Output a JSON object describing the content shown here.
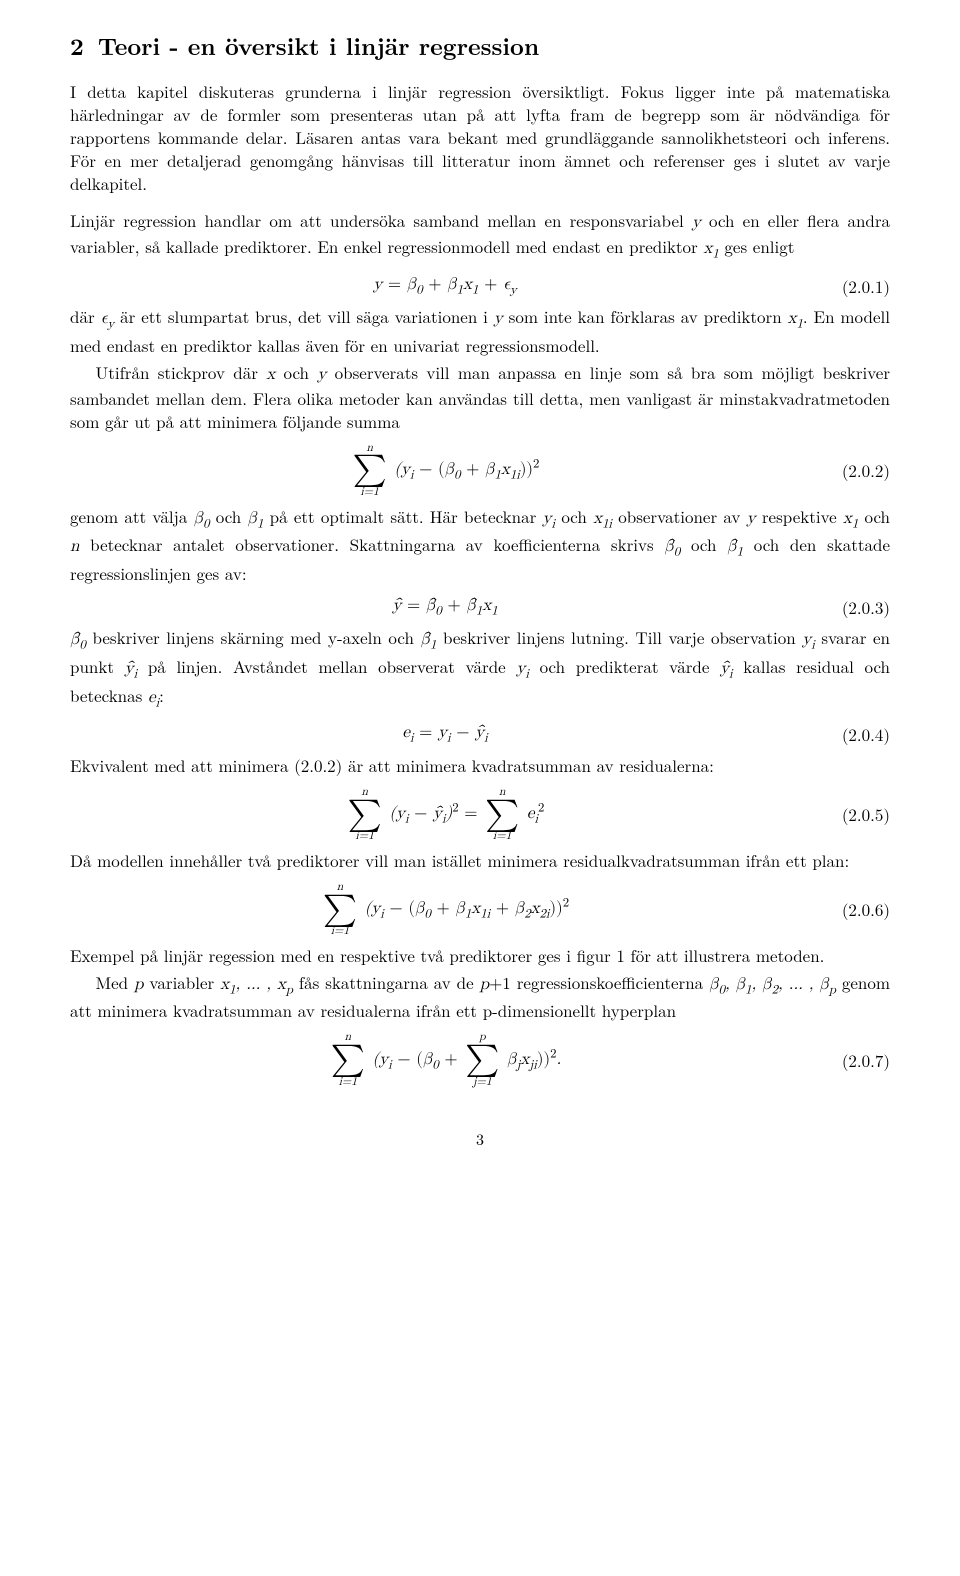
{
  "section": {
    "number": "2",
    "title": "Teori - en översikt i linjär regression"
  },
  "para1": "I detta kapitel diskuteras grunderna i linjär regression översiktligt. Fokus ligger inte på matematiska härledningar av de formler som presenteras utan på att lyfta fram de begrepp som är nödvändiga för rapportens kommande delar. Läsaren antas vara bekant med grundläggande sannolikhetsteori och inferens. För en mer detaljerad genomgång hänvisas till litteratur inom ämnet och referenser ges i slutet av varje delkapitel.",
  "para2a": "Linjär regression handlar om att undersöka samband mellan en responsvariabel ",
  "para2b": " och en eller flera andra variabler, så kallade prediktorer. En enkel regressionmodell med endast en prediktor ",
  "para2c": " ges enligt",
  "eq1": {
    "num": "(2.0.1)"
  },
  "para3a": "där ",
  "para3b": " är ett slumpartat brus, det vill säga variationen i ",
  "para3c": " som inte kan förklaras av prediktorn ",
  "para3d": ". En modell med endast en prediktor kallas även för en univariat regressionsmodell.",
  "para4a": "Utifrån stickprov där ",
  "para4b": " och ",
  "para4c": " observerats vill man anpassa en linje som så bra som möjligt beskriver sambandet mellan dem. Flera olika metoder kan användas till detta, men vanligast är minstakvadratmetoden som går ut på att minimera följande summa",
  "eq2": {
    "num": "(2.0.2)"
  },
  "para5a": "genom att välja ",
  "para5b": " och ",
  "para5c": " på ett optimalt sätt. Här betecknar ",
  "para5d": " och ",
  "para5e": " observationer av ",
  "para5f": " respektive ",
  "para5g": " och ",
  "para5h": " betecknar antalet observationer. Skattningarna av koefficienterna skrivs ",
  "para5i": " och ",
  "para5j": " och den skattade regressionslinjen ges av:",
  "eq3": {
    "num": "(2.0.3)"
  },
  "para6a": " beskriver linjens skärning med y-axeln och ",
  "para6b": " beskriver linjens lutning. Till varje observation ",
  "para6c": " svarar en punkt ",
  "para6d": " på linjen. Avståndet mellan observerat värde ",
  "para6e": " och predikterat värde ",
  "para6f": " kallas residual och betecknas ",
  "para6g": ":",
  "eq4": {
    "num": "(2.0.4)"
  },
  "para7": "Ekvivalent med att minimera (2.0.2) är att minimera kvadratsumman av residualerna:",
  "eq5": {
    "num": "(2.0.5)"
  },
  "para8": "Då modellen innehåller två prediktorer vill man istället minimera residualkvadratsumman ifrån ett plan:",
  "eq6": {
    "num": "(2.0.6)"
  },
  "para9": "Exempel på linjär regession med en respektive två prediktorer ges i figur 1 för att illustrera metoden.",
  "para10a": "Med ",
  "para10b": " variabler ",
  "para10c": " fås skattningarna av de ",
  "para10d": " regressionskoefficienterna ",
  "para10e": " genom att minimera kvadratsumman av residualerna ifrån ett p-dimensionellt hyperplan",
  "eq7": {
    "num": "(2.0.7)"
  },
  "pagenum": "3"
}
